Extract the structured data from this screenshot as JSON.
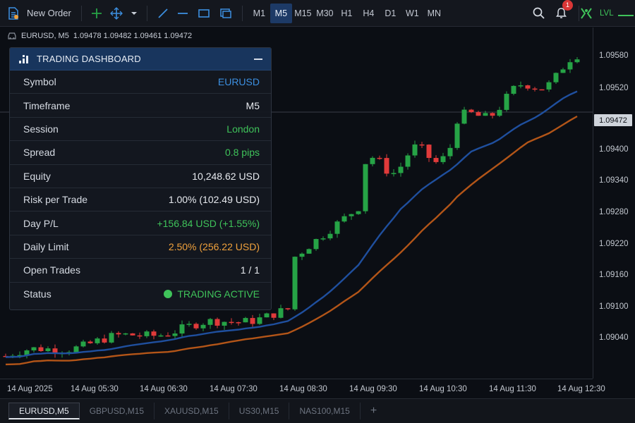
{
  "toolbar": {
    "new_order_label": "New Order",
    "timeframes": [
      "M1",
      "M5",
      "M15",
      "M30",
      "H1",
      "H4",
      "D1",
      "W1",
      "MN"
    ],
    "active_timeframe": "M5",
    "notification_count": "1",
    "account_label": "LVL"
  },
  "chart": {
    "symbol_header": "EURUSD, M5",
    "ohlc_header": "1.09478 1.09482 1.09461 1.09472",
    "current_price": "1.09472",
    "price_labels": [
      "1.09580",
      "1.09520",
      "1.09400",
      "1.09340",
      "1.09280",
      "1.09220",
      "1.09160",
      "1.09100",
      "1.09040"
    ],
    "time_labels": [
      "14 Aug 2025",
      "14 Aug 05:30",
      "14 Aug 06:30",
      "14 Aug 07:30",
      "14 Aug 08:30",
      "14 Aug 09:30",
      "14 Aug 10:30",
      "14 Aug 11:30",
      "14 Aug 12:30"
    ]
  },
  "chart_data": {
    "type": "line",
    "y_range": [
      1.0898,
      1.0962
    ],
    "last_price": 1.09472
  },
  "panel": {
    "title": "TRADING DASHBOARD",
    "rows": [
      {
        "label": "Symbol",
        "value": "EURUSD"
      },
      {
        "label": "Timeframe",
        "value": "M5"
      },
      {
        "label": "Session",
        "value": "London"
      },
      {
        "label": "Spread",
        "value": "0.8 pips"
      },
      {
        "label": "Equity",
        "value": "10,248.62 USD"
      },
      {
        "label": "Risk per Trade",
        "value": "1.00% (102.49 USD)"
      },
      {
        "label": "Day P/L",
        "value": "+156.84 USD (+1.55%)"
      },
      {
        "label": "Daily Limit",
        "value": "2.50% (256.22 USD)"
      },
      {
        "label": "Open Trades",
        "value": "1 / 1"
      },
      {
        "label": "Status",
        "value": "TRADING ACTIVE"
      }
    ]
  },
  "tabs": [
    "EURUSD,M5",
    "GBPUSD,M15",
    "XAUUSD,M15",
    "US30,M15",
    "NAS100,M15"
  ],
  "active_tab": "EURUSD,M5",
  "colors": {
    "bull": "#26a346",
    "bear": "#e03a3a",
    "ma_fast": "#1f4f9e",
    "ma_slow": "#b35518",
    "accent_blue": "#3c8fe0",
    "positive": "#3fc35a",
    "warning": "#f0a13c"
  }
}
